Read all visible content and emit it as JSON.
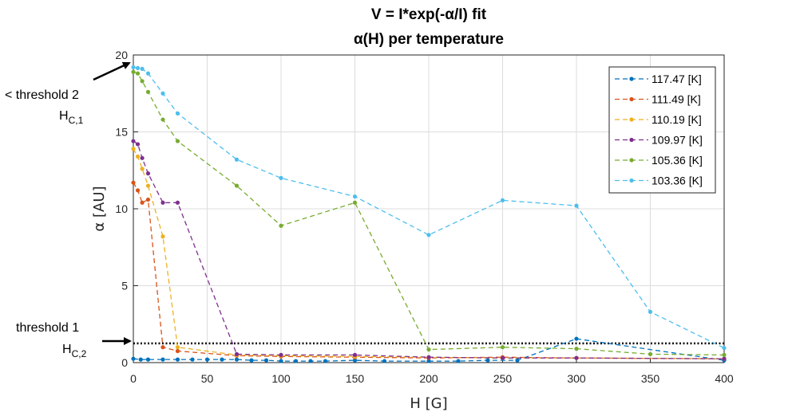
{
  "chart_data": {
    "type": "line",
    "title": "V = I*exp(-α/I) fit",
    "subtitle": "α(H) per temperature",
    "xlabel": "H [G]",
    "ylabel": "α [AU]",
    "xlim": [
      0,
      400
    ],
    "ylim": [
      0,
      20
    ],
    "xticks": [
      0,
      50,
      100,
      150,
      200,
      250,
      300,
      350,
      400
    ],
    "yticks": [
      0,
      5,
      10,
      15,
      20
    ],
    "grid": true,
    "legend_position": "top-right",
    "line_style": "dashed with dot markers",
    "series": [
      {
        "name": "117.47 [K]",
        "color": "#0072BD",
        "x": [
          0,
          5,
          10,
          20,
          30,
          40,
          50,
          60,
          70,
          80,
          90,
          100,
          110,
          120,
          130,
          150,
          170,
          200,
          220,
          240,
          260,
          300,
          400
        ],
        "y": [
          0.25,
          0.2,
          0.2,
          0.2,
          0.2,
          0.2,
          0.2,
          0.2,
          0.2,
          0.15,
          0.15,
          0.1,
          0.1,
          0.1,
          0.1,
          0.15,
          0.1,
          0.1,
          0.1,
          0.15,
          0.15,
          1.55,
          0.15
        ]
      },
      {
        "name": "111.49 [K]",
        "color": "#D95319",
        "x": [
          0,
          3,
          6,
          10,
          20,
          30,
          70,
          100,
          150,
          200,
          250,
          300,
          400
        ],
        "y": [
          11.7,
          11.2,
          10.4,
          10.6,
          1.0,
          0.75,
          0.45,
          0.4,
          0.35,
          0.3,
          0.35,
          0.3,
          0.25
        ]
      },
      {
        "name": "110.19 [K]",
        "color": "#EDB120",
        "x": [
          0,
          3,
          6,
          10,
          20,
          30,
          70,
          100,
          150,
          200,
          250,
          300,
          400
        ],
        "y": [
          13.9,
          13.4,
          12.6,
          11.5,
          8.2,
          1.0,
          0.5,
          0.45,
          0.4,
          0.35,
          0.3,
          0.3,
          0.25
        ]
      },
      {
        "name": "109.97 [K]",
        "color": "#7E2F8E",
        "x": [
          0,
          3,
          6,
          10,
          20,
          30,
          70,
          100,
          150,
          200,
          250,
          300,
          400
        ],
        "y": [
          14.4,
          14.2,
          13.3,
          12.3,
          10.4,
          10.4,
          0.55,
          0.5,
          0.5,
          0.35,
          0.3,
          0.3,
          0.25
        ]
      },
      {
        "name": "105.36 [K]",
        "color": "#77AC30",
        "x": [
          0,
          3,
          6,
          10,
          20,
          30,
          70,
          100,
          150,
          200,
          250,
          300,
          350,
          400
        ],
        "y": [
          18.9,
          18.8,
          18.3,
          17.6,
          15.8,
          14.4,
          11.5,
          8.9,
          10.4,
          0.85,
          1.0,
          0.9,
          0.55,
          0.5
        ]
      },
      {
        "name": "103.36 [K]",
        "color": "#4DBEEE",
        "x": [
          0,
          3,
          6,
          10,
          20,
          30,
          70,
          100,
          150,
          200,
          250,
          300,
          350,
          400
        ],
        "y": [
          19.2,
          19.15,
          19.1,
          18.8,
          17.5,
          16.2,
          13.2,
          12.0,
          10.8,
          8.3,
          10.55,
          10.2,
          3.3,
          0.95
        ]
      }
    ],
    "threshold_line": {
      "y": 1.25,
      "color": "#000000",
      "style": "dotted"
    }
  },
  "annotations": {
    "threshold2": "< threshold 2",
    "hc1_main": "H",
    "hc1_sub": "C,1",
    "threshold1": "threshold 1",
    "hc2_main": "H",
    "hc2_sub": "C,2"
  }
}
